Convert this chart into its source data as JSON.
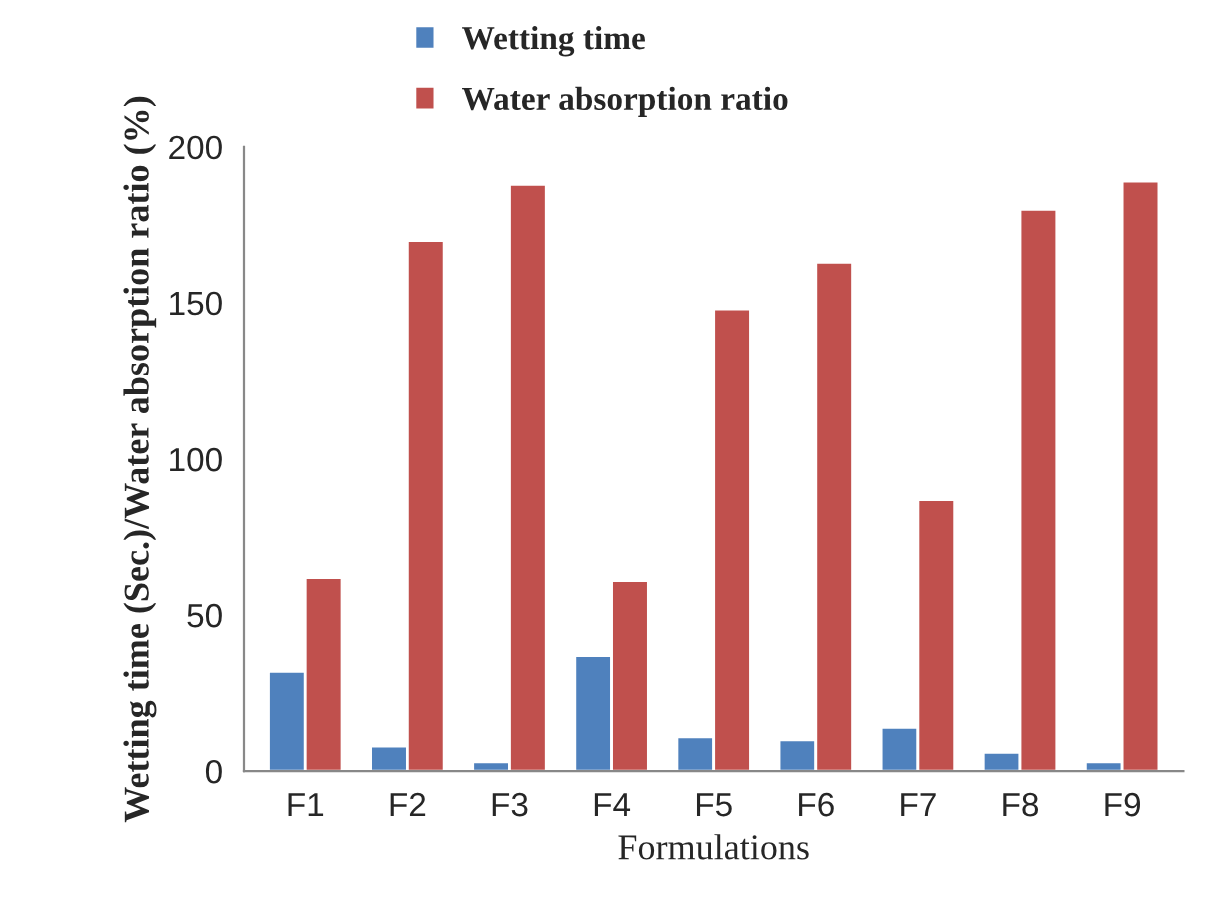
{
  "chart_data": {
    "type": "bar",
    "xlabel": "Formulations",
    "ylabel": "Wetting time (Sec.)/Water absorption ratio (%)",
    "categories": [
      "F1",
      "F2",
      "F3",
      "F4",
      "F5",
      "F6",
      "F7",
      "F8",
      "F9"
    ],
    "series": [
      {
        "name": "Wetting time",
        "color": "#4f81bd",
        "values": [
          32,
          8,
          3,
          37,
          11,
          10,
          14,
          6,
          3
        ]
      },
      {
        "name": "Water absorption ratio",
        "color": "#c0504d",
        "values": [
          62,
          170,
          188,
          61,
          148,
          163,
          87,
          180,
          189
        ]
      }
    ],
    "ylim": [
      0,
      200
    ],
    "yticks": [
      0,
      50,
      100,
      150,
      200
    ],
    "grid": false,
    "legend": "top"
  }
}
